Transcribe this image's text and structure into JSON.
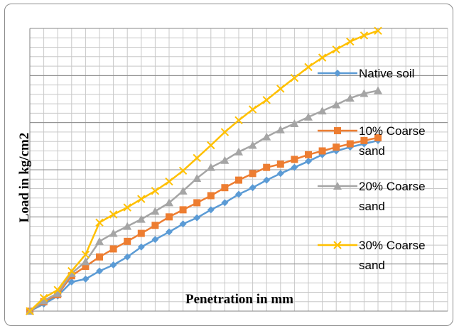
{
  "chart_data": {
    "type": "line",
    "title": "",
    "xlabel": "Penetration in mm",
    "ylabel": "Load in kg/cm2",
    "x": [
      0,
      1,
      2,
      3,
      4,
      5,
      6,
      7,
      8,
      9,
      10,
      11,
      12,
      13,
      14,
      15,
      16,
      17,
      18,
      19,
      20,
      21,
      22,
      23,
      24,
      25
    ],
    "xlim": [
      0,
      30
    ],
    "ylim": [
      0,
      6
    ],
    "grid": true,
    "legend_position": "right",
    "series": [
      {
        "name": "Native soil",
        "color": "#5B9BD5",
        "marker": "diamond",
        "values": [
          0,
          0.15,
          0.32,
          0.62,
          0.68,
          0.85,
          0.98,
          1.15,
          1.36,
          1.52,
          1.68,
          1.85,
          1.98,
          2.15,
          2.3,
          2.48,
          2.62,
          2.78,
          2.92,
          3.05,
          3.18,
          3.32,
          3.4,
          3.48,
          3.55,
          3.62
        ]
      },
      {
        "name": "10% Coarse sand",
        "color": "#ED7D31",
        "marker": "square",
        "values": [
          0,
          0.2,
          0.35,
          0.75,
          0.95,
          1.15,
          1.32,
          1.48,
          1.65,
          1.82,
          2.0,
          2.15,
          2.3,
          2.45,
          2.62,
          2.78,
          2.92,
          3.05,
          3.12,
          3.22,
          3.32,
          3.4,
          3.48,
          3.55,
          3.62,
          3.68
        ]
      },
      {
        "name": "20% Coarse sand",
        "color": "#A5A5A5",
        "marker": "triangle",
        "values": [
          0,
          0.22,
          0.38,
          0.8,
          1.05,
          1.48,
          1.65,
          1.8,
          1.95,
          2.12,
          2.3,
          2.55,
          2.82,
          3.05,
          3.2,
          3.38,
          3.52,
          3.7,
          3.85,
          3.98,
          4.12,
          4.25,
          4.38,
          4.52,
          4.62,
          4.68
        ]
      },
      {
        "name": "30% Coarse sand",
        "color": "#FFC000",
        "marker": "x",
        "values": [
          0,
          0.28,
          0.45,
          0.85,
          1.2,
          1.88,
          2.05,
          2.2,
          2.38,
          2.55,
          2.75,
          2.98,
          3.25,
          3.52,
          3.8,
          4.05,
          4.28,
          4.48,
          4.72,
          4.95,
          5.18,
          5.38,
          5.55,
          5.72,
          5.85,
          5.95
        ]
      }
    ]
  }
}
